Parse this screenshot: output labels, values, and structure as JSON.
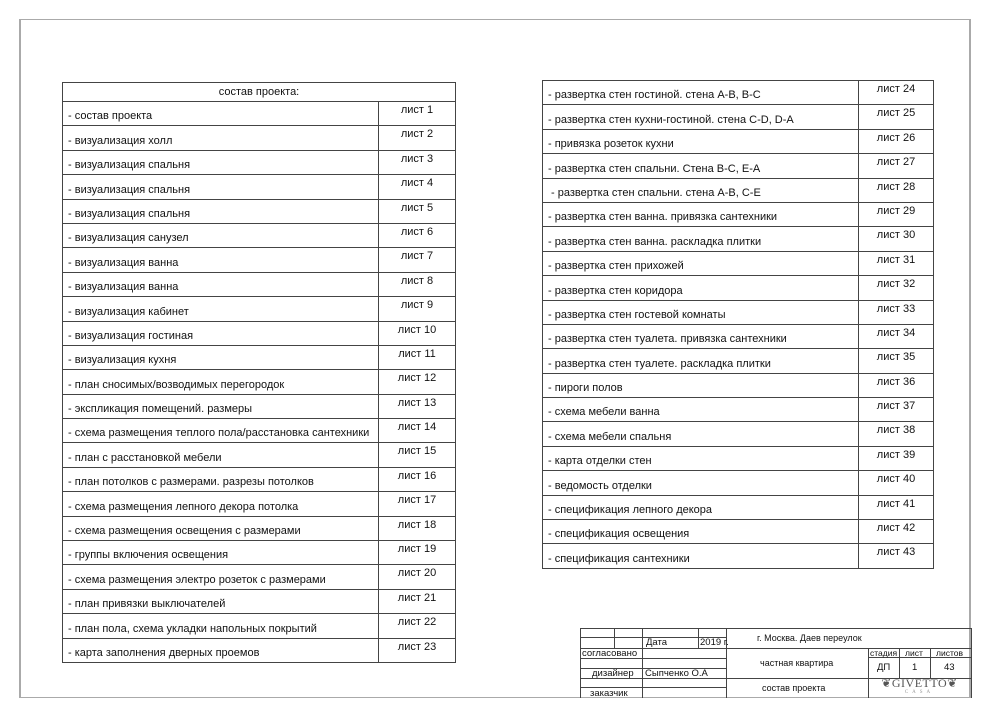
{
  "left_table": {
    "title": "состав проекта:",
    "rows": [
      {
        "label": "- состав проекта",
        "sheet": "лист 1"
      },
      {
        "label": "- визуализация холл",
        "sheet": "лист 2"
      },
      {
        "label": "- визуализация спальня",
        "sheet": "лист 3"
      },
      {
        "label": "- визуализация спальня",
        "sheet": "лист 4"
      },
      {
        "label": "- визуализация спальня",
        "sheet": "лист 5"
      },
      {
        "label": "- визуализация санузел",
        "sheet": "лист 6"
      },
      {
        "label": "- визуализация ванна",
        "sheet": "лист 7"
      },
      {
        "label": "- визуализация ванна",
        "sheet": "лист 8"
      },
      {
        "label": "- визуализация кабинет",
        "sheet": "лист 9"
      },
      {
        "label": "- визуализация гостиная",
        "sheet": "лист 10"
      },
      {
        "label": "- визуализация кухня",
        "sheet": "лист 11"
      },
      {
        "label": "- план сносимых/возводимых перегородок",
        "sheet": "лист 12"
      },
      {
        "label": "- экспликация помещений. размеры",
        "sheet": "лист 13"
      },
      {
        "label": "- схема размещения теплого пола/расстановка сантехники",
        "sheet": "лист 14"
      },
      {
        "label": "- план с расстановкой мебели",
        "sheet": "лист 15"
      },
      {
        "label": "- план потолков с размерами. разрезы потолков",
        "sheet": "лист 16"
      },
      {
        "label": "- схема размещения лепного декора потолка",
        "sheet": "лист 17"
      },
      {
        "label": "- схема размещения освещения с размерами",
        "sheet": "лист 18"
      },
      {
        "label": "- группы включения освещения",
        "sheet": "лист 19"
      },
      {
        "label": "- схема размещения электро розеток с размерами",
        "sheet": "лист 20"
      },
      {
        "label": "- план привязки выключателей",
        "sheet": "лист 21"
      },
      {
        "label": "- план пола, схема укладки напольных покрытий",
        "sheet": "лист 22"
      },
      {
        "label": "- карта заполнения дверных проемов",
        "sheet": "лист 23"
      }
    ]
  },
  "right_table": {
    "rows": [
      {
        "label": "- развертка стен гостиной. стена A-B, B-C",
        "sheet": "лист 24"
      },
      {
        "label": "- развертка стен кухни-гостиной. стена C-D, D-A",
        "sheet": "лист 25"
      },
      {
        "label": "- привязка розеток кухни",
        "sheet": "лист 26"
      },
      {
        "label": "- развертка стен спальни. Стена B-C, E-A",
        "sheet": "лист 27"
      },
      {
        "label": " - развертка стен спальни. стена A-B, C-E",
        "sheet": "лист 28"
      },
      {
        "label": "- развертка стен ванна. привязка сантехники",
        "sheet": "лист 29"
      },
      {
        "label": "- развертка стен ванна. раскладка плитки",
        "sheet": "лист 30"
      },
      {
        "label": "- развертка стен прихожей",
        "sheet": "лист 31"
      },
      {
        "label": "- развертка стен коридора",
        "sheet": "лист 32"
      },
      {
        "label": "- развертка стен гостевой комнаты",
        "sheet": "лист 33"
      },
      {
        "label": "- развертка стен туалета. привязка сантехники",
        "sheet": "лист 34"
      },
      {
        "label": "- развертка стен туалете. раскладка плитки",
        "sheet": "лист 35"
      },
      {
        "label": "- пироги полов",
        "sheet": "лист 36"
      },
      {
        "label": "- схема мебели ванна",
        "sheet": "лист 37"
      },
      {
        "label": "- схема мебели спальня",
        "sheet": "лист 38"
      },
      {
        "label": "- карта отделки стен",
        "sheet": "лист 39"
      },
      {
        "label": "- ведомость отделки",
        "sheet": "лист 40"
      },
      {
        "label": "- спецификация лепного декора",
        "sheet": "лист 41"
      },
      {
        "label": "- спецификация освещения",
        "sheet": "лист 42"
      },
      {
        "label": "- спецификация сантехники",
        "sheet": "лист 43"
      }
    ]
  },
  "title_block": {
    "date_label": "Дата",
    "year": "2019 г.",
    "approved_label": "согласовано",
    "designer_label": "дизайнер",
    "designer_name": "Сыпченко О.А",
    "client_label": "заказчик",
    "address": "г. Москва. Даев переулок",
    "object": "частная квартира",
    "sheet_title": "состав проекта",
    "stage_label": "стадия",
    "sheet_label": "лист",
    "sheets_label": "листов",
    "stage": "ДП",
    "sheet": "1",
    "sheets": "43",
    "logo_text": "GIVETTO",
    "logo_sub": "CASA"
  }
}
